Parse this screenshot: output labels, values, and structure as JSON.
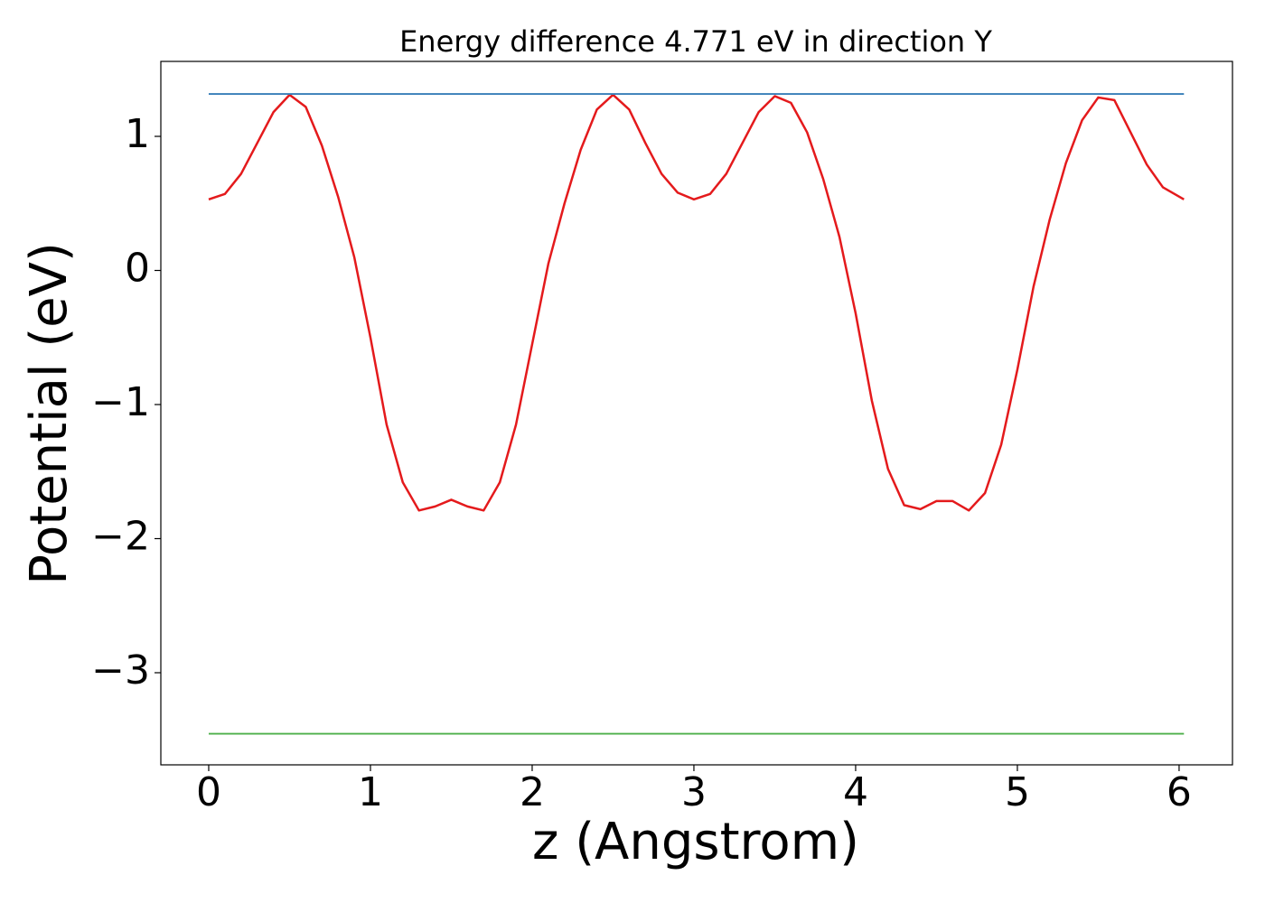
{
  "chart_data": {
    "type": "line",
    "title": "Energy difference 4.771 eV in direction Y",
    "x_label": "z (Angstrom)",
    "y_label": "Potential (eV)",
    "xlim": [
      -0.296,
      6.33
    ],
    "ylim": [
      -3.687,
      1.559
    ],
    "xticks": [
      0,
      1,
      2,
      3,
      4,
      5,
      6
    ],
    "yticks": [
      {
        "value": -3,
        "label": "−3"
      },
      {
        "value": -2,
        "label": "−2"
      },
      {
        "value": -1,
        "label": "−1"
      },
      0,
      1
    ],
    "grid": false,
    "series": [
      {
        "color": "#e41a1c",
        "x": [
          0,
          0.1,
          0.2,
          0.3,
          0.4,
          0.5,
          0.6,
          0.7,
          0.8,
          0.9,
          1.0,
          1.1,
          1.2,
          1.3,
          1.4,
          1.5,
          1.6,
          1.7,
          1.8,
          1.9,
          2.0,
          2.1,
          2.2,
          2.3,
          2.4,
          2.5,
          2.6,
          2.7,
          2.8,
          2.9,
          3.0,
          3.1,
          3.2,
          3.3,
          3.4,
          3.5,
          3.6,
          3.7,
          3.8,
          3.9,
          4.0,
          4.1,
          4.2,
          4.3,
          4.4,
          4.5,
          4.6,
          4.7,
          4.8,
          4.9,
          5.0,
          5.1,
          5.2,
          5.3,
          5.4,
          5.5,
          5.6,
          5.7,
          5.8,
          5.9,
          6.03
        ],
        "values": [
          0.53,
          0.57,
          0.72,
          0.95,
          1.18,
          1.31,
          1.22,
          0.93,
          0.55,
          0.1,
          -0.5,
          -1.15,
          -1.58,
          -1.79,
          -1.76,
          -1.71,
          -1.76,
          -1.79,
          -1.58,
          -1.15,
          -0.55,
          0.05,
          0.5,
          0.9,
          1.2,
          1.31,
          1.2,
          0.95,
          0.72,
          0.58,
          0.53,
          0.57,
          0.72,
          0.95,
          1.18,
          1.3,
          1.25,
          1.03,
          0.68,
          0.25,
          -0.32,
          -0.97,
          -1.48,
          -1.75,
          -1.78,
          -1.72,
          -1.72,
          -1.79,
          -1.66,
          -1.3,
          -0.74,
          -0.12,
          0.38,
          0.8,
          1.12,
          1.29,
          1.27,
          1.03,
          0.79,
          0.62,
          0.53
        ]
      },
      {
        "color": "#377eb8",
        "x": [
          0,
          6.03
        ],
        "values": [
          1.316,
          1.316
        ]
      },
      {
        "color": "#4daf4a",
        "x": [
          0,
          6.03
        ],
        "values": [
          -3.455,
          -3.455
        ]
      }
    ]
  }
}
